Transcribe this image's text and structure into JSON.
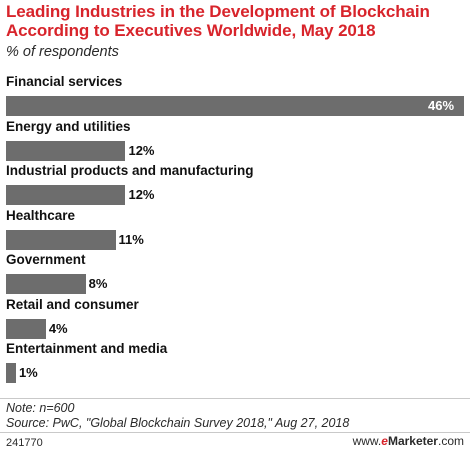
{
  "title": "Leading Industries in the Development of Blockchain According to Executives Worldwide, May 2018",
  "subtitle": "% of respondents",
  "chart_data": {
    "type": "bar",
    "orientation": "horizontal",
    "categories": [
      "Financial services",
      "Energy and utilities",
      "Industrial products and manufacturing",
      "Healthcare",
      "Government",
      "Retail and consumer",
      "Entertainment and media"
    ],
    "values": [
      46,
      12,
      12,
      11,
      8,
      4,
      1
    ],
    "value_labels": [
      "46%",
      "12%",
      "12%",
      "11%",
      "8%",
      "4%",
      "1%"
    ],
    "xlim": [
      0,
      46
    ],
    "grid": false,
    "bar_color": "#6d6d6d"
  },
  "note": "Note: n=600",
  "source": "Source: PwC, \"Global Blockchain Survey 2018,\" Aug 27, 2018",
  "chart_id": "241770",
  "brand": {
    "prefix": "www.",
    "e": "e",
    "name": "Marketer",
    "suffix": ".com"
  },
  "colors": {
    "title": "#d8242b",
    "bar": "#6d6d6d",
    "brand_accent": "#d8242b"
  }
}
